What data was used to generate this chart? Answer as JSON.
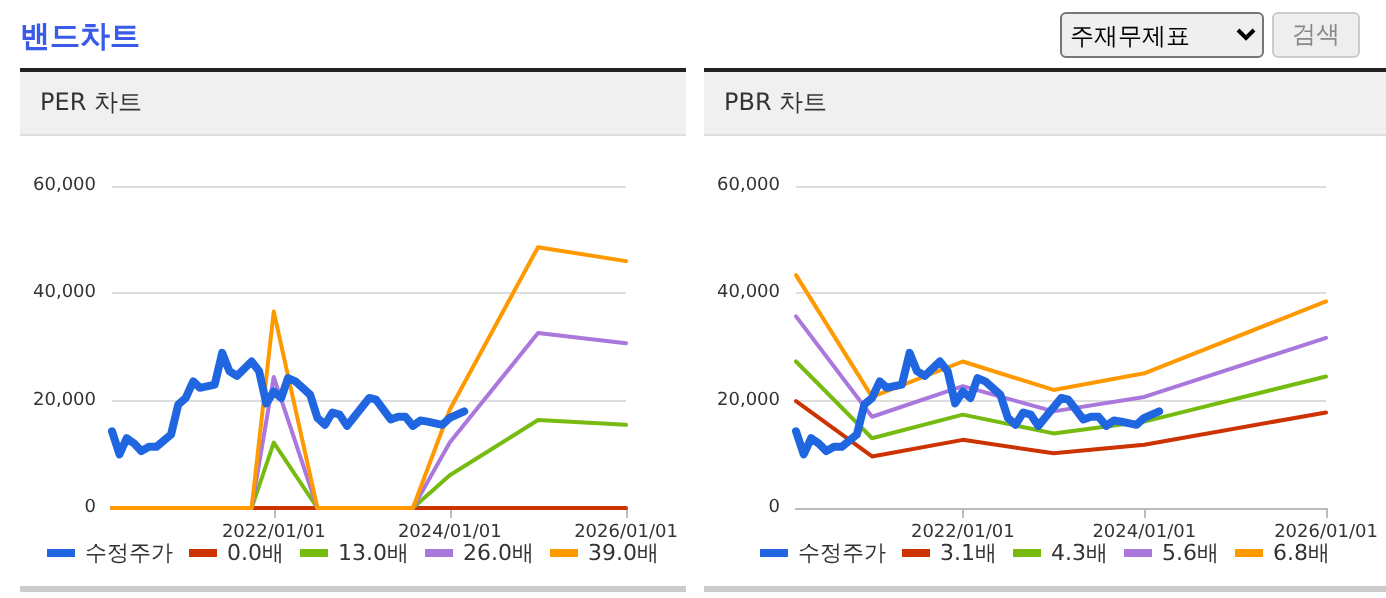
{
  "chart_data": [
    {
      "type": "other",
      "title": "밴드차트",
      "annotations": [
        "주재무제표",
        "검색"
      ]
    },
    {
      "type": "line",
      "title": "PER 차트",
      "xlim": [
        "2020-03",
        "2026-01"
      ],
      "xticks": [
        {
          "value": "2022-01-01",
          "label": "2022/01/01"
        },
        {
          "value": "2024-01-01",
          "label": "2024/01/01"
        },
        {
          "value": "2026-01-01",
          "label": "2026/01/01"
        }
      ],
      "ylim": [
        0,
        60000
      ],
      "yticks": [
        {
          "value": 0,
          "label": "0"
        },
        {
          "value": 20000,
          "label": "20,000"
        },
        {
          "value": 40000,
          "label": "40,000"
        },
        {
          "value": 60000,
          "label": "60,000"
        }
      ],
      "grid": "y",
      "legend": "bottom",
      "marker": "none",
      "line_style": "solid",
      "series": [
        {
          "name": "수정주가",
          "color": "#1f66e0",
          "x": [
            "2020-03",
            "2020-04",
            "2020-05",
            "2020-06",
            "2020-07",
            "2020-08",
            "2020-09",
            "2020-11",
            "2020-12",
            "2021-01",
            "2021-02",
            "2021-03",
            "2021-05",
            "2021-06",
            "2021-07",
            "2021-08",
            "2021-10",
            "2021-11",
            "2021-12",
            "2022-01",
            "2022-02",
            "2022-03",
            "2022-04",
            "2022-06",
            "2022-07",
            "2022-08",
            "2022-09",
            "2022-10",
            "2022-11",
            "2022-12",
            "2023-02",
            "2023-03",
            "2023-05",
            "2023-06",
            "2023-07",
            "2023-08",
            "2023-09",
            "2023-10",
            "2023-12",
            "2024-01",
            "2024-03"
          ],
          "values": [
            14300,
            10000,
            13000,
            12000,
            10600,
            11400,
            11400,
            13700,
            19300,
            20500,
            23600,
            22400,
            23000,
            28900,
            25500,
            24600,
            27300,
            25500,
            19500,
            21700,
            20500,
            24200,
            23600,
            21100,
            16800,
            15500,
            17800,
            17400,
            15300,
            17000,
            20500,
            20200,
            16500,
            17000,
            17000,
            15300,
            16300,
            16100,
            15500,
            16800,
            18000
          ]
        },
        {
          "name": "0.0배",
          "color": "#cc3300",
          "x": [
            "2020-03",
            "2021-10",
            "2022-01",
            "2022-07",
            "2023-08",
            "2024-01",
            "2025-01",
            "2026-01"
          ],
          "values": [
            0,
            0,
            0,
            0,
            0,
            0,
            0,
            0
          ]
        },
        {
          "name": "13.0배",
          "color": "#77bb11",
          "x": [
            "2020-03",
            "2021-10",
            "2022-01",
            "2022-07",
            "2023-08",
            "2024-01",
            "2025-01",
            "2026-01"
          ],
          "values": [
            0,
            0,
            12200,
            0,
            0,
            6100,
            16400,
            15500
          ]
        },
        {
          "name": "26.0배",
          "color": "#aa77dd",
          "x": [
            "2020-03",
            "2021-10",
            "2022-01",
            "2022-07",
            "2023-08",
            "2024-01",
            "2025-01",
            "2026-01"
          ],
          "values": [
            0,
            0,
            24400,
            0,
            0,
            12200,
            32600,
            30700
          ]
        },
        {
          "name": "39.0배",
          "color": "#ff9900",
          "x": [
            "2020-03",
            "2021-10",
            "2022-01",
            "2022-07",
            "2023-08",
            "2024-01",
            "2025-01",
            "2026-01"
          ],
          "values": [
            0,
            0,
            36600,
            0,
            0,
            18300,
            48600,
            46000
          ]
        }
      ]
    },
    {
      "type": "line",
      "title": "PBR 차트",
      "xlim": [
        "2020-03",
        "2026-01"
      ],
      "xticks": [
        {
          "value": "2022-01-01",
          "label": "2022/01/01"
        },
        {
          "value": "2024-01-01",
          "label": "2024/01/01"
        },
        {
          "value": "2026-01-01",
          "label": "2026/01/01"
        }
      ],
      "ylim": [
        0,
        60000
      ],
      "yticks": [
        {
          "value": 0,
          "label": "0"
        },
        {
          "value": 20000,
          "label": "20,000"
        },
        {
          "value": 40000,
          "label": "40,000"
        },
        {
          "value": 60000,
          "label": "60,000"
        }
      ],
      "grid": "y",
      "legend": "bottom",
      "marker": "none",
      "line_style": "solid",
      "series": [
        {
          "name": "수정주가",
          "color": "#1f66e0",
          "x": [
            "2020-03",
            "2020-04",
            "2020-05",
            "2020-06",
            "2020-07",
            "2020-08",
            "2020-09",
            "2020-11",
            "2020-12",
            "2021-01",
            "2021-02",
            "2021-03",
            "2021-05",
            "2021-06",
            "2021-07",
            "2021-08",
            "2021-10",
            "2021-11",
            "2021-12",
            "2022-01",
            "2022-02",
            "2022-03",
            "2022-04",
            "2022-06",
            "2022-07",
            "2022-08",
            "2022-09",
            "2022-10",
            "2022-11",
            "2022-12",
            "2023-02",
            "2023-03",
            "2023-05",
            "2023-06",
            "2023-07",
            "2023-08",
            "2023-09",
            "2023-10",
            "2023-12",
            "2024-01",
            "2024-03"
          ],
          "values": [
            14300,
            10000,
            13000,
            12000,
            10600,
            11400,
            11400,
            13700,
            19300,
            20500,
            23600,
            22400,
            23000,
            28900,
            25500,
            24600,
            27300,
            25500,
            19500,
            21700,
            20500,
            24200,
            23600,
            21100,
            16800,
            15500,
            17800,
            17400,
            15300,
            17000,
            20500,
            20200,
            16500,
            17000,
            17000,
            15300,
            16300,
            16100,
            15500,
            16800,
            18000
          ]
        },
        {
          "name": "3.1배",
          "color": "#cc3300",
          "x": [
            "2020-03",
            "2021-01",
            "2022-01",
            "2023-01",
            "2024-01",
            "2026-01"
          ],
          "values": [
            19900,
            9600,
            12700,
            10200,
            11800,
            17800
          ]
        },
        {
          "name": "4.3배",
          "color": "#77bb11",
          "x": [
            "2020-03",
            "2021-01",
            "2022-01",
            "2023-01",
            "2024-01",
            "2026-01"
          ],
          "values": [
            27300,
            13000,
            17400,
            13900,
            16100,
            24500
          ]
        },
        {
          "name": "5.6배",
          "color": "#aa77dd",
          "x": [
            "2020-03",
            "2021-01",
            "2022-01",
            "2023-01",
            "2024-01",
            "2026-01"
          ],
          "values": [
            35700,
            17000,
            22700,
            18000,
            20700,
            31700
          ]
        },
        {
          "name": "6.8배",
          "color": "#ff9900",
          "x": [
            "2020-03",
            "2021-01",
            "2022-01",
            "2023-01",
            "2024-01",
            "2026-01"
          ],
          "values": [
            43400,
            20700,
            27300,
            22000,
            25100,
            38500
          ]
        }
      ]
    }
  ]
}
